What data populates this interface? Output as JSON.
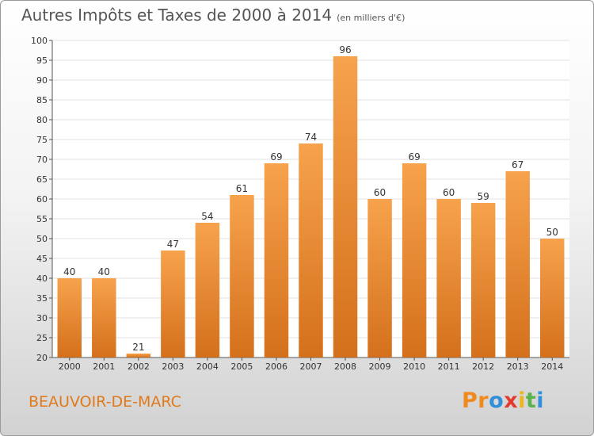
{
  "title": "Autres Impôts et Taxes de 2000 à 2014",
  "unit": "(en milliers d'€)",
  "commune": "BEAUVOIR-DE-MARC",
  "logo": {
    "letters": [
      "P",
      "r",
      "o",
      "x",
      "i",
      "t",
      "i"
    ],
    "colors": [
      "#f08a1d",
      "#f08a1d",
      "#2f8fd8",
      "#e23a2f",
      "#f0b41d",
      "#59b34a",
      "#2f8fd8"
    ]
  },
  "colors": {
    "bar_light": "#f7a24c",
    "bar_dark": "#d4701c",
    "commune": "#e07a1c"
  },
  "chart_data": {
    "type": "bar",
    "categories": [
      "2000",
      "2001",
      "2002",
      "2003",
      "2004",
      "2005",
      "2006",
      "2007",
      "2008",
      "2009",
      "2010",
      "2011",
      "2012",
      "2013",
      "2014"
    ],
    "values": [
      40,
      40,
      21,
      47,
      54,
      61,
      69,
      74,
      96,
      60,
      69,
      60,
      59,
      67,
      50
    ],
    "ylim": [
      20,
      100
    ],
    "yticks": [
      20,
      25,
      30,
      35,
      40,
      45,
      50,
      55,
      60,
      65,
      70,
      75,
      80,
      85,
      90,
      95,
      100
    ],
    "grid": true
  }
}
